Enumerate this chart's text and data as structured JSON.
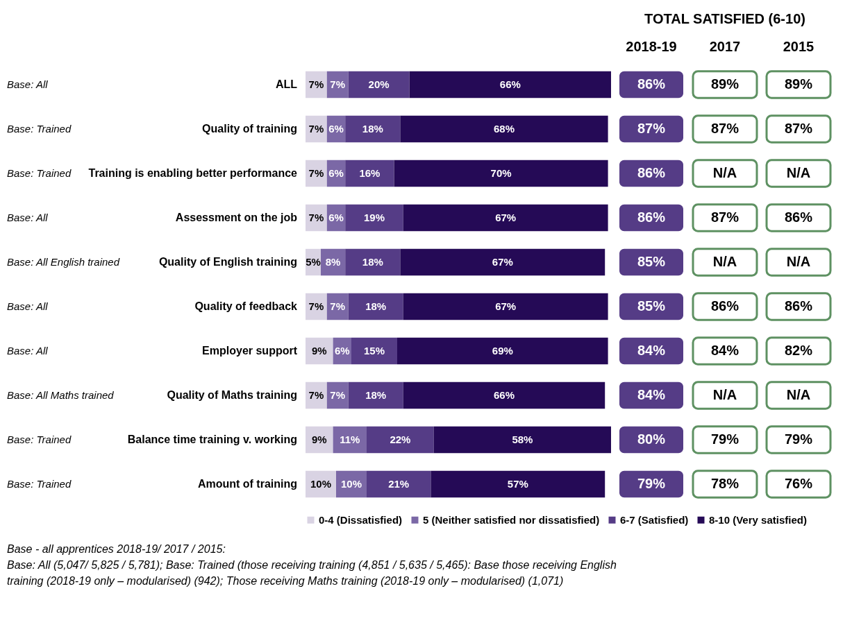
{
  "chart_data": {
    "type": "bar",
    "orientation": "horizontal",
    "stacked": true,
    "title": "TOTAL SATISFIED (6-10)",
    "legend": "bottom",
    "categories": [
      "ALL",
      "Quality of training",
      "Training is enabling better performance",
      "Assessment on the job",
      "Quality of English training",
      "Quality of feedback",
      "Employer support",
      "Quality of Maths training",
      "Balance time training v. working",
      "Amount of training"
    ],
    "series": [
      {
        "name": "0-4 (Dissatisfied)",
        "color": "#d9d3e3",
        "values": [
          7,
          7,
          7,
          7,
          5,
          7,
          9,
          7,
          9,
          10
        ],
        "value_labels": [
          "7%",
          "7%",
          "7%",
          "7%",
          "5%",
          "7%",
          "9%",
          "7%",
          "9%",
          "10%"
        ]
      },
      {
        "name": "5 (Neither satisfied nor dissatisfied)",
        "color": "#7b68a6",
        "values": [
          7,
          6,
          6,
          6,
          8,
          7,
          6,
          7,
          11,
          10
        ],
        "value_labels": [
          "7%",
          "6%",
          "6%",
          "6%",
          "8%",
          "7%",
          "6%",
          "7%",
          "11%",
          "10%"
        ]
      },
      {
        "name": "6-7 (Satisfied)",
        "color": "#553c86",
        "values": [
          20,
          18,
          16,
          19,
          18,
          18,
          15,
          18,
          22,
          21
        ],
        "value_labels": [
          "20%",
          "18%",
          "16%",
          "19%",
          "18%",
          "18%",
          "15%",
          "18%",
          "22%",
          "21%"
        ]
      },
      {
        "name": "8-10 (Very satisfied)",
        "color": "#250a56",
        "values": [
          66,
          68,
          70,
          67,
          67,
          67,
          69,
          66,
          58,
          57
        ],
        "value_labels": [
          "66%",
          "68%",
          "70%",
          "67%",
          "67%",
          "67%",
          "69%",
          "66%",
          "58%",
          "57%"
        ]
      }
    ],
    "annotations": [
      "Base: All",
      "Base: Trained",
      "Base: Trained",
      "Base: All",
      "Base: All English trained",
      "Base: All",
      "Base: All",
      "Base: All Maths trained",
      "Base: Trained",
      "Base: Trained",
      "2018-19",
      "86%",
      "87%",
      "86%",
      "86%",
      "85%",
      "85%",
      "84%",
      "84%",
      "80%",
      "79%",
      "2017",
      "89%",
      "87%",
      "N/A",
      "87%",
      "N/A",
      "86%",
      "84%",
      "N/A",
      "79%",
      "78%",
      "2015",
      "89%",
      "87%",
      "N/A",
      "86%",
      "N/A",
      "86%",
      "82%",
      "N/A",
      "79%",
      "76%",
      "Base - all apprentices 2018-19/ 2017 / 2015:",
      "Base: All (5,047/ 5,825 / 5,781); Base: Trained (those receiving training (4,851 / 5,635 / 5,465): Base those receiving English",
      "training (2018-19 only – modularised) (942); Those receiving Maths training (2018-19 only – modularised) (1,071)"
    ]
  }
}
